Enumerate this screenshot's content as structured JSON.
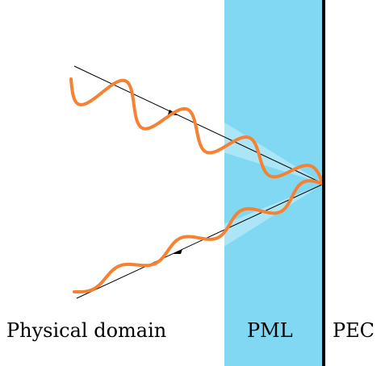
{
  "labels": {
    "physical_domain": "Physical domain",
    "pml": "PML",
    "pec": "PEC"
  },
  "colors": {
    "pml_fill": "#80d8f2",
    "wave": "#f58232",
    "ray": "#000000",
    "pec_wall": "#000000",
    "beam_highlight": "#ffffff"
  }
}
